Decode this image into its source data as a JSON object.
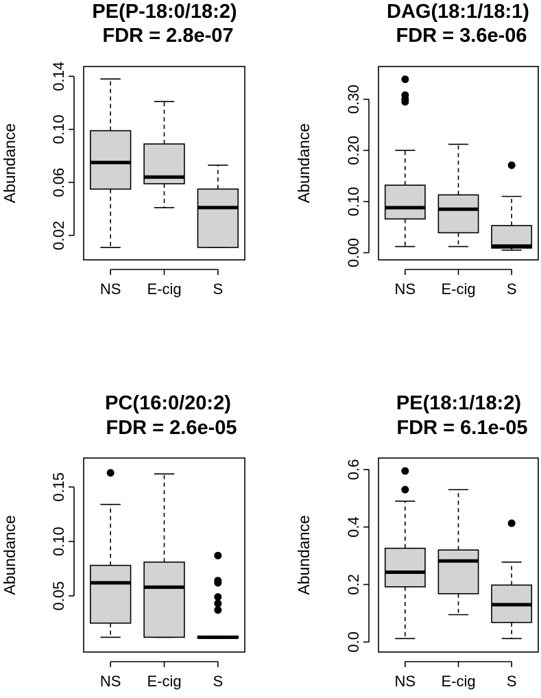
{
  "chart_data": [
    {
      "type": "boxplot",
      "title": "PE(P-18:0/18:2)",
      "subtitle": "FDR = 2.8e-07",
      "ylabel": "Abundance",
      "categories": [
        "NS",
        "E-cig",
        "S"
      ],
      "ylim": [
        0.007,
        0.142
      ],
      "yticks": [
        0.02,
        0.06,
        0.1,
        0.14
      ],
      "ytick_labels": [
        "0.02",
        "0.06",
        "0.10",
        "0.14"
      ],
      "boxes": [
        {
          "whisker_low": 0.011,
          "q1": 0.055,
          "median": 0.075,
          "q3": 0.099,
          "whisker_high": 0.138,
          "outliers": []
        },
        {
          "whisker_low": 0.041,
          "q1": 0.059,
          "median": 0.064,
          "q3": 0.089,
          "whisker_high": 0.121,
          "outliers": []
        },
        {
          "whisker_low": 0.011,
          "q1": 0.011,
          "median": 0.041,
          "q3": 0.055,
          "whisker_high": 0.073,
          "outliers": []
        }
      ]
    },
    {
      "type": "boxplot",
      "title": "DAG(18:1/18:1)",
      "subtitle": "FDR = 3.6e-06",
      "ylabel": "Abundance",
      "categories": [
        "NS",
        "E-cig",
        "S"
      ],
      "ylim": [
        0.0,
        0.35
      ],
      "yticks": [
        0.0,
        0.1,
        0.2,
        0.3
      ],
      "ytick_labels": [
        "0.00",
        "0.10",
        "0.20",
        "0.30"
      ],
      "boxes": [
        {
          "whisker_low": 0.012,
          "q1": 0.066,
          "median": 0.088,
          "q3": 0.132,
          "whisker_high": 0.2,
          "outliers": [
            0.295,
            0.3,
            0.308,
            0.339
          ]
        },
        {
          "whisker_low": 0.012,
          "q1": 0.039,
          "median": 0.085,
          "q3": 0.113,
          "whisker_high": 0.212,
          "outliers": []
        },
        {
          "whisker_low": 0.005,
          "q1": 0.009,
          "median": 0.013,
          "q3": 0.053,
          "whisker_high": 0.11,
          "outliers": [
            0.171
          ]
        }
      ]
    },
    {
      "type": "boxplot",
      "title": "PC(16:0/20:2)",
      "subtitle": "FDR = 2.6e-05",
      "ylabel": "Abundance",
      "categories": [
        "NS",
        "E-cig",
        "S"
      ],
      "ylim": [
        0.005,
        0.17
      ],
      "yticks": [
        0.05,
        0.1,
        0.15
      ],
      "ytick_labels": [
        "0.05",
        "0.10",
        "0.15"
      ],
      "boxes": [
        {
          "whisker_low": 0.012,
          "q1": 0.025,
          "median": 0.062,
          "q3": 0.078,
          "whisker_high": 0.134,
          "outliers": [
            0.163
          ]
        },
        {
          "whisker_low": 0.012,
          "q1": 0.012,
          "median": 0.058,
          "q3": 0.081,
          "whisker_high": 0.162,
          "outliers": []
        },
        {
          "whisker_low": 0.011,
          "q1": 0.011,
          "median": 0.012,
          "q3": 0.013,
          "whisker_high": 0.013,
          "outliers": [
            0.037,
            0.043,
            0.049,
            0.062,
            0.064,
            0.087
          ]
        }
      ]
    },
    {
      "type": "boxplot",
      "title": "PE(18:1/18:2)",
      "subtitle": "FDR = 6.1e-05",
      "ylabel": "Abundance",
      "categories": [
        "NS",
        "E-cig",
        "S"
      ],
      "ylim": [
        -0.01,
        0.615
      ],
      "yticks": [
        0.0,
        0.2,
        0.4,
        0.6
      ],
      "ytick_labels": [
        "0.0",
        "0.2",
        "0.4",
        "0.6"
      ],
      "boxes": [
        {
          "whisker_low": 0.012,
          "q1": 0.192,
          "median": 0.243,
          "q3": 0.326,
          "whisker_high": 0.49,
          "outliers": [
            0.53,
            0.595
          ]
        },
        {
          "whisker_low": 0.095,
          "q1": 0.168,
          "median": 0.282,
          "q3": 0.32,
          "whisker_high": 0.53,
          "outliers": []
        },
        {
          "whisker_low": 0.012,
          "q1": 0.068,
          "median": 0.13,
          "q3": 0.198,
          "whisker_high": 0.278,
          "outliers": [
            0.413
          ]
        }
      ]
    }
  ]
}
